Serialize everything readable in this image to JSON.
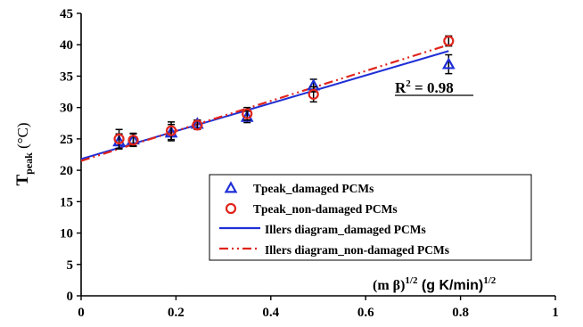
{
  "chart_data": {
    "type": "scatter",
    "xlabel": {
      "main": "(m β)",
      "sup1": "1/2",
      "unit": " (g K/min)",
      "sup2": "1/2"
    },
    "ylabel": {
      "main": "T",
      "sub": "peak",
      "unit": " (°C)"
    },
    "xlim": [
      0,
      1
    ],
    "ylim": [
      0,
      45
    ],
    "x_ticks": [
      0,
      0.2,
      0.4,
      0.6,
      0.8,
      1
    ],
    "y_ticks": [
      0,
      5,
      10,
      15,
      20,
      25,
      30,
      35,
      40,
      45
    ],
    "x_tick_labels": [
      "0",
      "0.2",
      "0.4",
      "0.6",
      "0.8",
      "1"
    ],
    "y_tick_labels": [
      "0",
      "5",
      "10",
      "15",
      "20",
      "25",
      "30",
      "35",
      "40",
      "45"
    ],
    "grid": false,
    "legend_position": "bottom-right",
    "annotation": {
      "text": "R² = 0.98",
      "main": "R",
      "sup": "2",
      "rest": " = 0.98"
    },
    "series": [
      {
        "name": "Tpeak_damaged PCMs",
        "kind": "marker",
        "marker": "triangle",
        "color": "#1f2fd6",
        "x": [
          0.08,
          0.11,
          0.19,
          0.245,
          0.35,
          0.49,
          0.775
        ],
        "y": [
          24.6,
          24.9,
          26.0,
          27.4,
          28.5,
          33.5,
          36.9
        ],
        "error": [
          1.2,
          1.0,
          1.3,
          0.6,
          0.9,
          1.0,
          1.5
        ]
      },
      {
        "name": "Tpeak_non-damaged PCMs",
        "kind": "marker",
        "marker": "circle",
        "color": "#e0241b",
        "x": [
          0.08,
          0.11,
          0.19,
          0.245,
          0.35,
          0.49,
          0.775
        ],
        "y": [
          25.0,
          24.8,
          26.3,
          27.2,
          29.0,
          32.1,
          40.6
        ],
        "error": [
          1.5,
          1.0,
          1.4,
          0.7,
          1.0,
          1.2,
          0.8
        ]
      },
      {
        "name": "Illers diagram_damaged PCMs",
        "kind": "line",
        "style": "solid",
        "color": "#1f2fd6",
        "x": [
          0,
          0.775
        ],
        "y": [
          21.8,
          39.0
        ]
      },
      {
        "name": "Illers diagram_non-damaged PCMs",
        "kind": "line",
        "style": "dashdot",
        "color": "#e0241b",
        "x": [
          0,
          0.775
        ],
        "y": [
          21.5,
          40.0
        ]
      }
    ]
  }
}
